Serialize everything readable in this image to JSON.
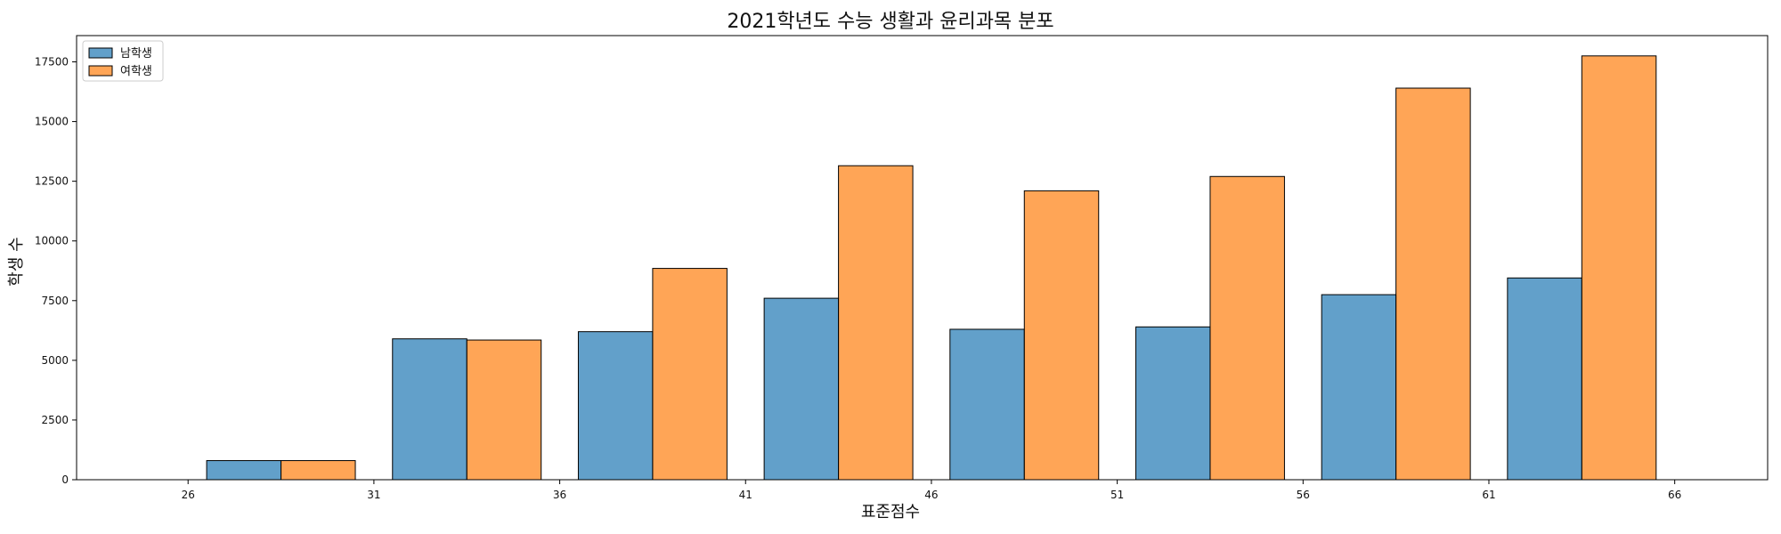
{
  "chart_data": {
    "type": "bar",
    "title": "2021학년도 수능 생활과 윤리과목 분포",
    "xlabel": "표준점수",
    "ylabel": "학생 수",
    "xlim": [
      23,
      68.5
    ],
    "ylim": [
      0,
      18600
    ],
    "x_ticks": [
      26,
      31,
      36,
      41,
      46,
      51,
      56,
      61,
      66
    ],
    "y_ticks": [
      0,
      2500,
      5000,
      7500,
      10000,
      12500,
      15000,
      17500
    ],
    "bin_edges": [
      26,
      31,
      36,
      41,
      46,
      51,
      56,
      61,
      66
    ],
    "legend": {
      "placement": "top-left",
      "entries": [
        {
          "label": "남학생",
          "color": "#1f77b4"
        },
        {
          "label": "여학생",
          "color": "#ff7f0e"
        }
      ]
    },
    "grid": false,
    "series": [
      {
        "name": "남학생",
        "color": "#1f77b4",
        "values": [
          800,
          5900,
          6200,
          7600,
          6300,
          6400,
          7750,
          8450
        ]
      },
      {
        "name": "여학생",
        "color": "#ff7f0e",
        "values": [
          800,
          5850,
          8850,
          13150,
          12100,
          12700,
          16400,
          17750
        ]
      }
    ]
  }
}
